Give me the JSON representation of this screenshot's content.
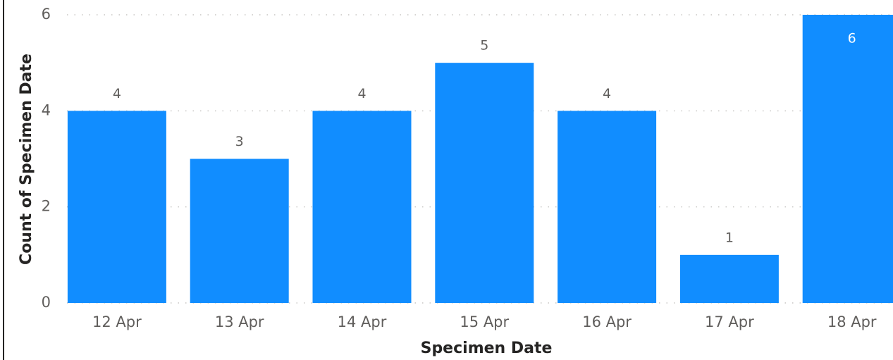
{
  "chart_data": {
    "type": "bar",
    "x_label": "Specimen Date",
    "y_label": "Count of Specimen Date",
    "categories": [
      "12 Apr",
      "13 Apr",
      "14 Apr",
      "15 Apr",
      "16 Apr",
      "17 Apr",
      "18 Apr"
    ],
    "values": [
      4,
      3,
      4,
      5,
      4,
      1,
      6
    ],
    "color": "#118dff",
    "ylim": [
      0,
      6
    ],
    "yticks": [
      0,
      2,
      4,
      6
    ],
    "grid": true
  }
}
